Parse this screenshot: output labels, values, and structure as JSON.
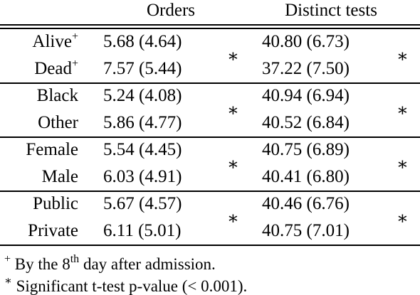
{
  "header": {
    "orders": "Orders",
    "tests": "Distinct tests"
  },
  "groups": [
    {
      "rows": [
        {
          "label": "Alive",
          "mark": "+",
          "orders": "5.68 (4.64)",
          "tests": "40.80 (6.73)"
        },
        {
          "label": "Dead",
          "mark": "+",
          "orders": "7.57 (5.44)",
          "tests": "37.22 (7.50)"
        }
      ],
      "orders_sig": "∗",
      "tests_sig": "∗"
    },
    {
      "rows": [
        {
          "label": "Black",
          "orders": "5.24 (4.08)",
          "tests": "40.94 (6.94)"
        },
        {
          "label": "Other",
          "orders": "5.86 (4.77)",
          "tests": "40.52 (6.84)"
        }
      ],
      "orders_sig": "∗",
      "tests_sig": "∗"
    },
    {
      "rows": [
        {
          "label": "Female",
          "orders": "5.54 (4.45)",
          "tests": "40.75 (6.89)"
        },
        {
          "label": "Male",
          "orders": "6.03 (4.91)",
          "tests": "40.41 (6.80)"
        }
      ],
      "orders_sig": "∗",
      "tests_sig": "∗"
    },
    {
      "rows": [
        {
          "label": "Public",
          "orders": "5.67 (4.57)",
          "tests": "40.46 (6.76)"
        },
        {
          "label": "Private",
          "orders": "6.11 (5.01)",
          "tests": "40.75 (7.01)"
        }
      ],
      "orders_sig": "∗",
      "tests_sig": "∗"
    }
  ],
  "footnotes": [
    {
      "marker": "+",
      "text": "By the 8",
      "sup": "th",
      "rest": " day after admission."
    },
    {
      "marker": "∗",
      "text": "Significant t-test p-value (< 0.001)."
    }
  ]
}
